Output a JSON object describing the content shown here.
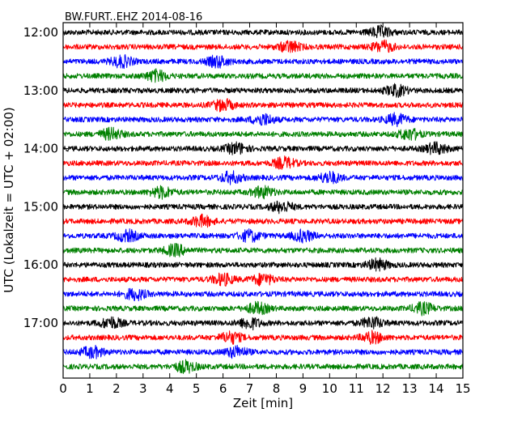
{
  "chart_data": {
    "type": "line",
    "title": "BW.FURT..EHZ 2014-08-16",
    "xlabel": "Zeit  [min]",
    "ylabel": "UTC (Lokalzeit = UTC + 02:00)",
    "xlim": [
      0,
      15
    ],
    "x_ticks": [
      "0",
      "1",
      "2",
      "3",
      "4",
      "5",
      "6",
      "7",
      "8",
      "9",
      "10",
      "11",
      "12",
      "13",
      "14",
      "15"
    ],
    "y_ticks": [
      "12:00",
      "13:00",
      "14:00",
      "15:00",
      "16:00",
      "17:00"
    ],
    "grid": false,
    "trace_minutes": 15,
    "traces_per_hour": 4,
    "color_cycle": [
      "#000000",
      "#ff0000",
      "#0000ff",
      "#008000"
    ],
    "series": [
      {
        "start": "12:00",
        "color": "#000000",
        "bursts": [
          11.9
        ]
      },
      {
        "start": "12:15",
        "color": "#ff0000",
        "bursts": [
          8.5,
          12
        ]
      },
      {
        "start": "12:30",
        "color": "#0000ff",
        "bursts": [
          2.2,
          5.8
        ]
      },
      {
        "start": "12:45",
        "color": "#008000",
        "bursts": [
          3.5
        ]
      },
      {
        "start": "13:00",
        "color": "#000000",
        "bursts": [
          12.5
        ]
      },
      {
        "start": "13:15",
        "color": "#ff0000",
        "bursts": [
          6
        ]
      },
      {
        "start": "13:30",
        "color": "#0000ff",
        "bursts": [
          7.5,
          12.5
        ]
      },
      {
        "start": "13:45",
        "color": "#008000",
        "bursts": [
          1.8,
          13
        ]
      },
      {
        "start": "14:00",
        "color": "#000000",
        "bursts": [
          6.5,
          14
        ]
      },
      {
        "start": "14:15",
        "color": "#ff0000",
        "bursts": [
          8.3
        ]
      },
      {
        "start": "14:30",
        "color": "#0000ff",
        "bursts": [
          6.3,
          10
        ]
      },
      {
        "start": "14:45",
        "color": "#008000",
        "bursts": [
          3.7,
          7.5
        ]
      },
      {
        "start": "15:00",
        "color": "#000000",
        "bursts": [
          8.2
        ]
      },
      {
        "start": "15:15",
        "color": "#ff0000",
        "bursts": [
          5.2
        ]
      },
      {
        "start": "15:30",
        "color": "#0000ff",
        "bursts": [
          2.4,
          7,
          9
        ]
      },
      {
        "start": "15:45",
        "color": "#008000",
        "bursts": [
          4.2
        ]
      },
      {
        "start": "16:00",
        "color": "#000000",
        "bursts": [
          11.8
        ]
      },
      {
        "start": "16:15",
        "color": "#ff0000",
        "bursts": [
          6,
          7.5
        ]
      },
      {
        "start": "16:30",
        "color": "#0000ff",
        "bursts": [
          2.7
        ]
      },
      {
        "start": "16:45",
        "color": "#008000",
        "bursts": [
          7.3,
          13.5
        ]
      },
      {
        "start": "17:00",
        "color": "#000000",
        "bursts": [
          1.8,
          7,
          11.6
        ]
      },
      {
        "start": "17:15",
        "color": "#ff0000",
        "bursts": [
          6.3,
          11.6
        ]
      },
      {
        "start": "17:30",
        "color": "#0000ff",
        "bursts": [
          1.1,
          6.5
        ]
      },
      {
        "start": "17:45",
        "color": "#008000",
        "bursts": [
          4.6
        ]
      }
    ]
  }
}
